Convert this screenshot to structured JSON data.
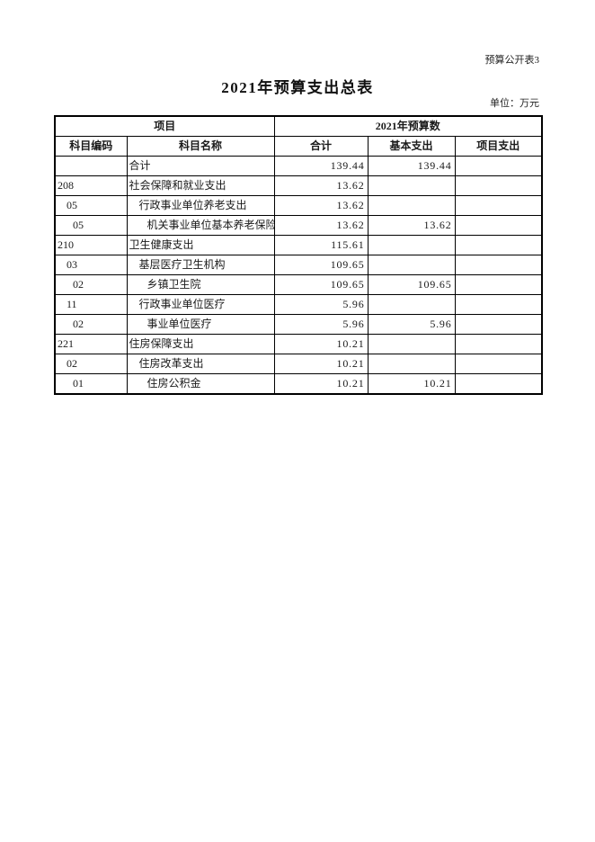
{
  "page": {
    "corner_note": "预算公开表3",
    "title": "2021年预算支出总表",
    "unit_note": "单位：万元"
  },
  "table": {
    "header": {
      "group_project": "项目",
      "group_budget": "2021年预算数",
      "col_code": "科目编码",
      "col_name": "科目名称",
      "col_total": "合计",
      "col_basic": "基本支出",
      "col_project": "项目支出"
    },
    "rows": [
      {
        "code": "",
        "name": "合计",
        "level": 0,
        "total": "139.44",
        "basic": "139.44",
        "project": ""
      },
      {
        "code": "208",
        "name": "社会保障和就业支出",
        "level": 0,
        "total": "13.62",
        "basic": "",
        "project": ""
      },
      {
        "code": "05",
        "name": "行政事业单位养老支出",
        "level": 1,
        "total": "13.62",
        "basic": "",
        "project": ""
      },
      {
        "code": "05",
        "name": "机关事业单位基本养老保险",
        "level": 2,
        "total": "13.62",
        "basic": "13.62",
        "project": ""
      },
      {
        "code": "210",
        "name": "卫生健康支出",
        "level": 0,
        "total": "115.61",
        "basic": "",
        "project": ""
      },
      {
        "code": "03",
        "name": "基层医疗卫生机构",
        "level": 1,
        "total": "109.65",
        "basic": "",
        "project": ""
      },
      {
        "code": "02",
        "name": "乡镇卫生院",
        "level": 2,
        "total": "109.65",
        "basic": "109.65",
        "project": ""
      },
      {
        "code": "11",
        "name": "行政事业单位医疗",
        "level": 1,
        "total": "5.96",
        "basic": "",
        "project": ""
      },
      {
        "code": "02",
        "name": "事业单位医疗",
        "level": 2,
        "total": "5.96",
        "basic": "5.96",
        "project": ""
      },
      {
        "code": "221",
        "name": "住房保障支出",
        "level": 0,
        "total": "10.21",
        "basic": "",
        "project": ""
      },
      {
        "code": "02",
        "name": "住房改革支出",
        "level": 1,
        "total": "10.21",
        "basic": "",
        "project": ""
      },
      {
        "code": "01",
        "name": "住房公积金",
        "level": 2,
        "total": "10.21",
        "basic": "10.21",
        "project": ""
      }
    ]
  }
}
